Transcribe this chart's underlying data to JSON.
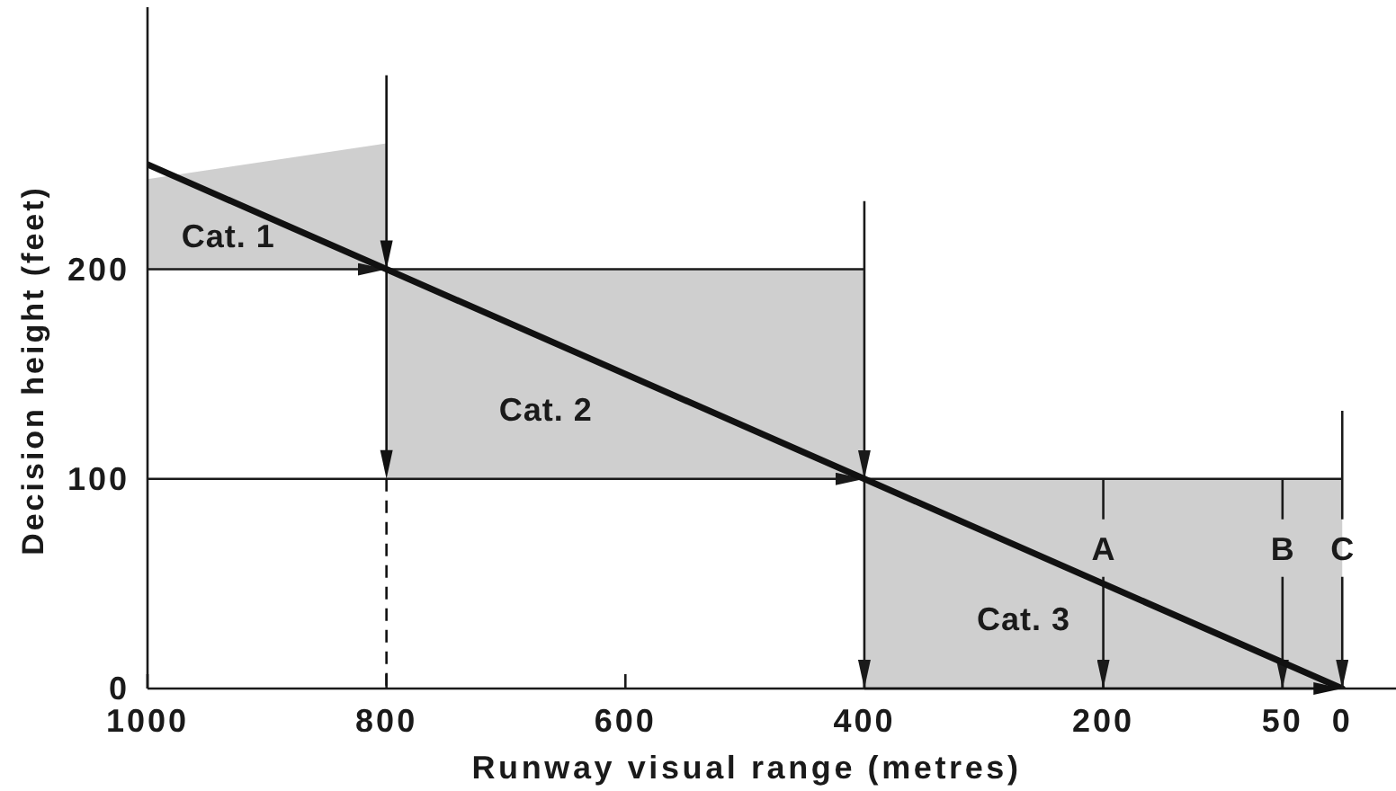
{
  "chart_data": {
    "type": "line",
    "xlabel": "Runway visual range (metres)",
    "ylabel": "Decision height (feet)",
    "xlim": [
      1000,
      -45
    ],
    "xticks": [
      1000,
      800,
      600,
      400,
      200,
      50,
      0
    ],
    "ylim": [
      0,
      325
    ],
    "yticks": [
      0,
      100,
      200
    ],
    "series": [
      {
        "color": "#111111",
        "x": [
          1000,
          800,
          800,
          400,
          400,
          0
        ],
        "values": [
          250,
          200,
          200,
          100,
          100,
          0
        ],
        "lower": [
          200,
          200,
          100,
          100,
          0,
          0
        ],
        "upper": [
          243,
          260,
          200,
          200,
          100,
          100
        ]
      }
    ],
    "ref_lines": [
      {
        "axis": "y",
        "value": 200
      },
      {
        "axis": "y",
        "value": 100
      },
      {
        "axis": "x",
        "value": 400
      },
      {
        "axis": "x",
        "value": 200,
        "label": "A"
      },
      {
        "axis": "x",
        "value": 50,
        "label": "B"
      },
      {
        "axis": "x",
        "value": 0,
        "label": "C"
      }
    ],
    "annotations": [
      "Cat. 1",
      "Cat. 2",
      "Cat. 3"
    ]
  }
}
